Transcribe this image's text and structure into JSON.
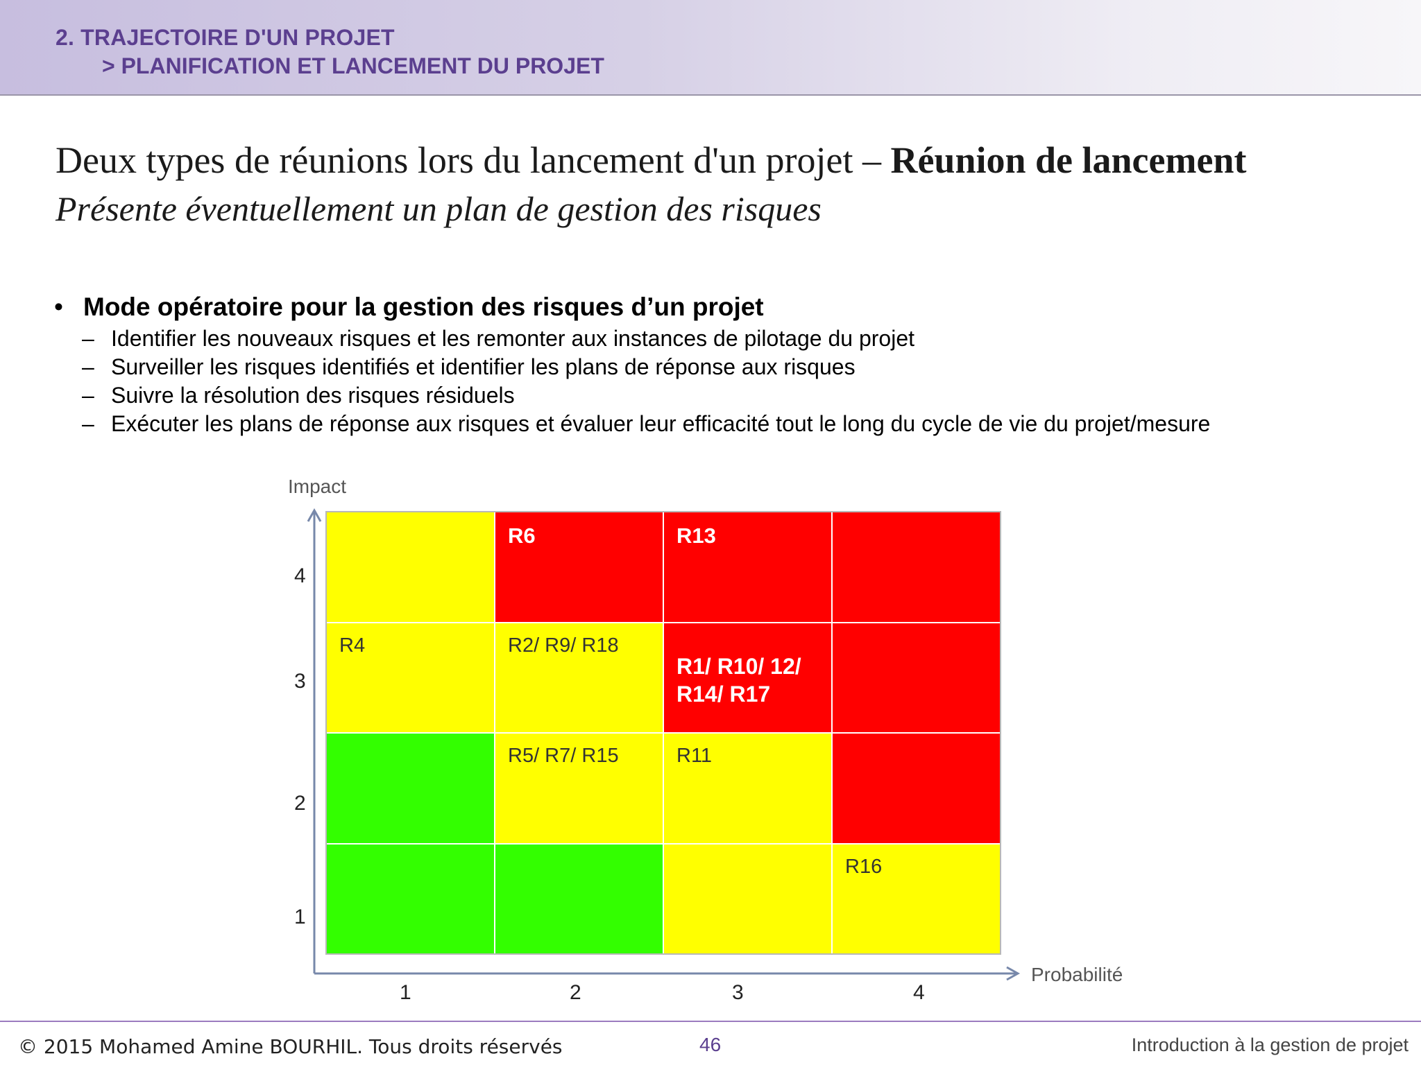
{
  "header": {
    "line1": "2.   TRAJECTOIRE D'UN PROJET",
    "line2": "> PLANIFICATION  ET LANCEMENT  DU PROJET"
  },
  "title": {
    "normal": "Deux types de réunions lors du lancement d'un projet – ",
    "bold": "Réunion de lancement",
    "subtitle": "Présente éventuellement un  plan de gestion des risques"
  },
  "bullets": {
    "bullet_char": "•",
    "dash_char": "–",
    "main": "Mode opératoire pour la gestion des risques d’un projet",
    "items": [
      "Identifier les nouveaux risques et les remonter aux instances de pilotage du projet",
      "Surveiller les risques identifiés et identifier les plans de réponse aux risques",
      "Suivre la résolution des risques résiduels",
      "Exécuter les plans de réponse aux risques et évaluer leur efficacité tout le long du cycle de vie du projet/mesure"
    ]
  },
  "chart_data": {
    "type": "heatmap",
    "ylabel": "Impact",
    "xlabel": "Probabilité",
    "x_ticks": [
      "1",
      "2",
      "3",
      "4"
    ],
    "y_ticks": [
      "4",
      "3",
      "2",
      "1"
    ],
    "colors": {
      "red": "#ff0000",
      "yellow": "#ffff00",
      "green": "#33ff00"
    },
    "rows": [
      [
        {
          "color": "yellow",
          "text": ""
        },
        {
          "color": "red",
          "text": "R6"
        },
        {
          "color": "red",
          "text": "R13"
        },
        {
          "color": "red",
          "text": ""
        }
      ],
      [
        {
          "color": "yellow",
          "text": "R4"
        },
        {
          "color": "yellow",
          "text": "R2/ R9/ R18"
        },
        {
          "color": "red",
          "text": "R1/ R10/ 12/\nR14/ R17"
        },
        {
          "color": "red",
          "text": ""
        }
      ],
      [
        {
          "color": "green",
          "text": ""
        },
        {
          "color": "yellow",
          "text": "R5/ R7/ R15"
        },
        {
          "color": "yellow",
          "text": "R11"
        },
        {
          "color": "red",
          "text": ""
        }
      ],
      [
        {
          "color": "green",
          "text": ""
        },
        {
          "color": "green",
          "text": ""
        },
        {
          "color": "yellow",
          "text": ""
        },
        {
          "color": "yellow",
          "text": "R16"
        }
      ]
    ]
  },
  "footer": {
    "copyright": "© 2015 Mohamed Amine BOURHIL. Tous droits réservés",
    "page_number": "46",
    "course": "Introduction à la gestion de projet"
  }
}
